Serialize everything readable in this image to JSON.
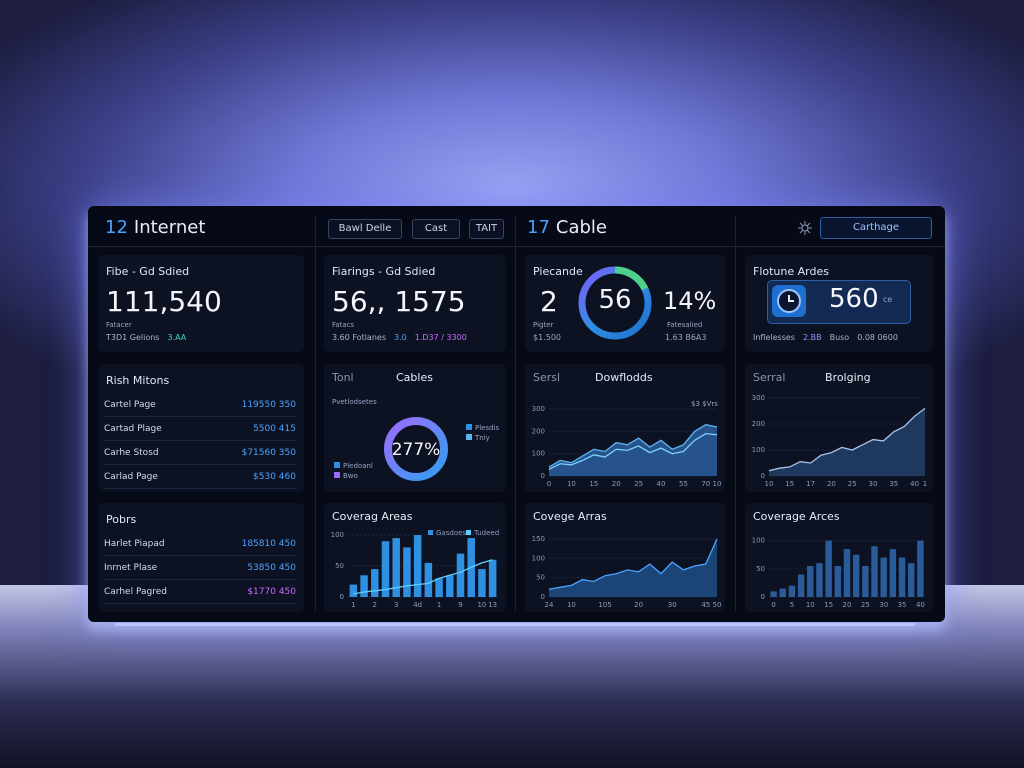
{
  "header": {
    "left_num": "12",
    "left_title": "Internet",
    "controls": [
      "Bawl Delle",
      "Cast",
      "TAIT"
    ],
    "right_num": "17",
    "right_title": "Cable",
    "button": "Carthage"
  },
  "kpis": [
    {
      "label": "Fibe - Gd Sdied",
      "value": "111,540",
      "caption": "Fatacer",
      "foot": [
        "T3D1 Gelions",
        "3.AA"
      ]
    },
    {
      "label": "Fiarings - Gd Sdied",
      "value": "56,, 1575",
      "caption": "Fatacs",
      "foot": [
        "3.60 Fotlanes",
        "3.0",
        "1.D37 / 3300"
      ]
    },
    {
      "label": "Piecande",
      "left": "2",
      "center": "56",
      "right": "14%",
      "caption": "Pigter",
      "sub": "$1.500",
      "note": "Fatesalied",
      "foot": "1.63 B6A3"
    },
    {
      "label": "Flotune Ardes",
      "value": "560",
      "unit": "ce",
      "foot": [
        "Inflelesses",
        "2.BB",
        "Buso",
        "0.08 0600"
      ]
    }
  ],
  "lists": [
    {
      "title": "Rish Mitons",
      "rows": [
        [
          "Cartel Page",
          "119550 350"
        ],
        [
          "Cartad Plage",
          "5500 415"
        ],
        [
          "Carhe Stosd",
          "$71560 350"
        ],
        [
          "Carlad Page",
          "$530 460"
        ]
      ]
    },
    {
      "title": "Pobrs",
      "rows": [
        [
          "Harlet Piapad",
          "185810 450"
        ],
        [
          "Inrnet Plase",
          "53850 450"
        ],
        [
          "Carhel Pagred",
          "$1770 450"
        ]
      ]
    }
  ],
  "donut": {
    "tab": "Tonl",
    "title": "Cables",
    "subtitle": "Pvetlodsetes",
    "center": "277%",
    "legend": [
      "Plesdis",
      "Tniy",
      "Pledoanl",
      "Bwo"
    ]
  },
  "charts": [
    {
      "tab": "Sersl",
      "title": "Dowflodds",
      "note": "$3 $Vrs",
      "type": "area",
      "ylim": [
        0,
        350
      ],
      "yticks": [
        0,
        100,
        200,
        300
      ],
      "categories": [
        "0",
        null,
        "10",
        null,
        "15",
        null,
        "20",
        null,
        "25",
        null,
        "40",
        null,
        "55",
        null,
        "70",
        "10"
      ],
      "series": [
        {
          "color": "#2b5f9e",
          "line_color": "#5fb4ef",
          "values": [
            40,
            70,
            60,
            90,
            120,
            110,
            150,
            140,
            170,
            130,
            160,
            120,
            140,
            200,
            230,
            220
          ]
        },
        {
          "type": "line",
          "color": "#7fd3ff",
          "values": [
            30,
            55,
            50,
            70,
            95,
            85,
            120,
            115,
            135,
            105,
            125,
            100,
            110,
            160,
            190,
            185
          ]
        }
      ]
    },
    {
      "tab": "Serral",
      "title": "Brolging",
      "type": "area",
      "ylim": [
        0,
        300
      ],
      "yticks": [
        0,
        100,
        200,
        300
      ],
      "categories": [
        "10",
        null,
        "15",
        null,
        "17",
        null,
        "20",
        null,
        "25",
        null,
        "30",
        null,
        "35",
        null,
        "40",
        "1"
      ],
      "series": [
        {
          "color": "#223f68",
          "line_color": "#a9c3ee",
          "values": [
            20,
            30,
            35,
            55,
            50,
            80,
            90,
            110,
            100,
            120,
            140,
            135,
            170,
            190,
            230,
            260
          ]
        }
      ]
    },
    {
      "title": "Coverag Areas",
      "type": "bar",
      "ylim": [
        0,
        100
      ],
      "yticks": [
        0,
        50,
        100
      ],
      "categories": [
        "1",
        null,
        "2",
        null,
        "3",
        null,
        "4d",
        null,
        "1",
        null,
        "9",
        null,
        "10",
        "13"
      ],
      "series": [
        {
          "name": "Gasdoes",
          "color": "#2f8fe0",
          "values": [
            20,
            35,
            45,
            90,
            95,
            80,
            100,
            55,
            30,
            35,
            70,
            95,
            45,
            60
          ]
        },
        {
          "name": "Tudeed",
          "type": "line",
          "color": "#5fd0ff",
          "values": [
            5,
            8,
            10,
            12,
            15,
            18,
            20,
            22,
            30,
            35,
            40,
            48,
            55,
            60
          ]
        }
      ]
    },
    {
      "title": "Covege Arras",
      "type": "area",
      "ylim": [
        0,
        160
      ],
      "yticks": [
        0,
        50,
        100,
        150
      ],
      "categories": [
        "24",
        null,
        "10",
        null,
        null,
        "105",
        null,
        null,
        "20",
        null,
        null,
        "30",
        null,
        null,
        "45",
        "50"
      ],
      "series": [
        {
          "color": "#1f4f86",
          "line_color": "#4aa3ff",
          "values": [
            20,
            25,
            30,
            45,
            40,
            55,
            60,
            70,
            65,
            85,
            60,
            90,
            70,
            80,
            85,
            150
          ]
        }
      ]
    },
    {
      "title": "Coverage Arces",
      "type": "bar",
      "ylim": [
        0,
        110
      ],
      "yticks": [
        0,
        50,
        100
      ],
      "categories": [
        "0",
        null,
        "5",
        null,
        "10",
        null,
        "15",
        null,
        "20",
        null,
        "25",
        null,
        "30",
        null,
        "35",
        null,
        "40"
      ],
      "series": [
        {
          "color": "#2a5c9c",
          "values": [
            10,
            15,
            20,
            40,
            55,
            60,
            100,
            55,
            85,
            75,
            55,
            90,
            70,
            85,
            70,
            60,
            100
          ]
        }
      ]
    }
  ]
}
